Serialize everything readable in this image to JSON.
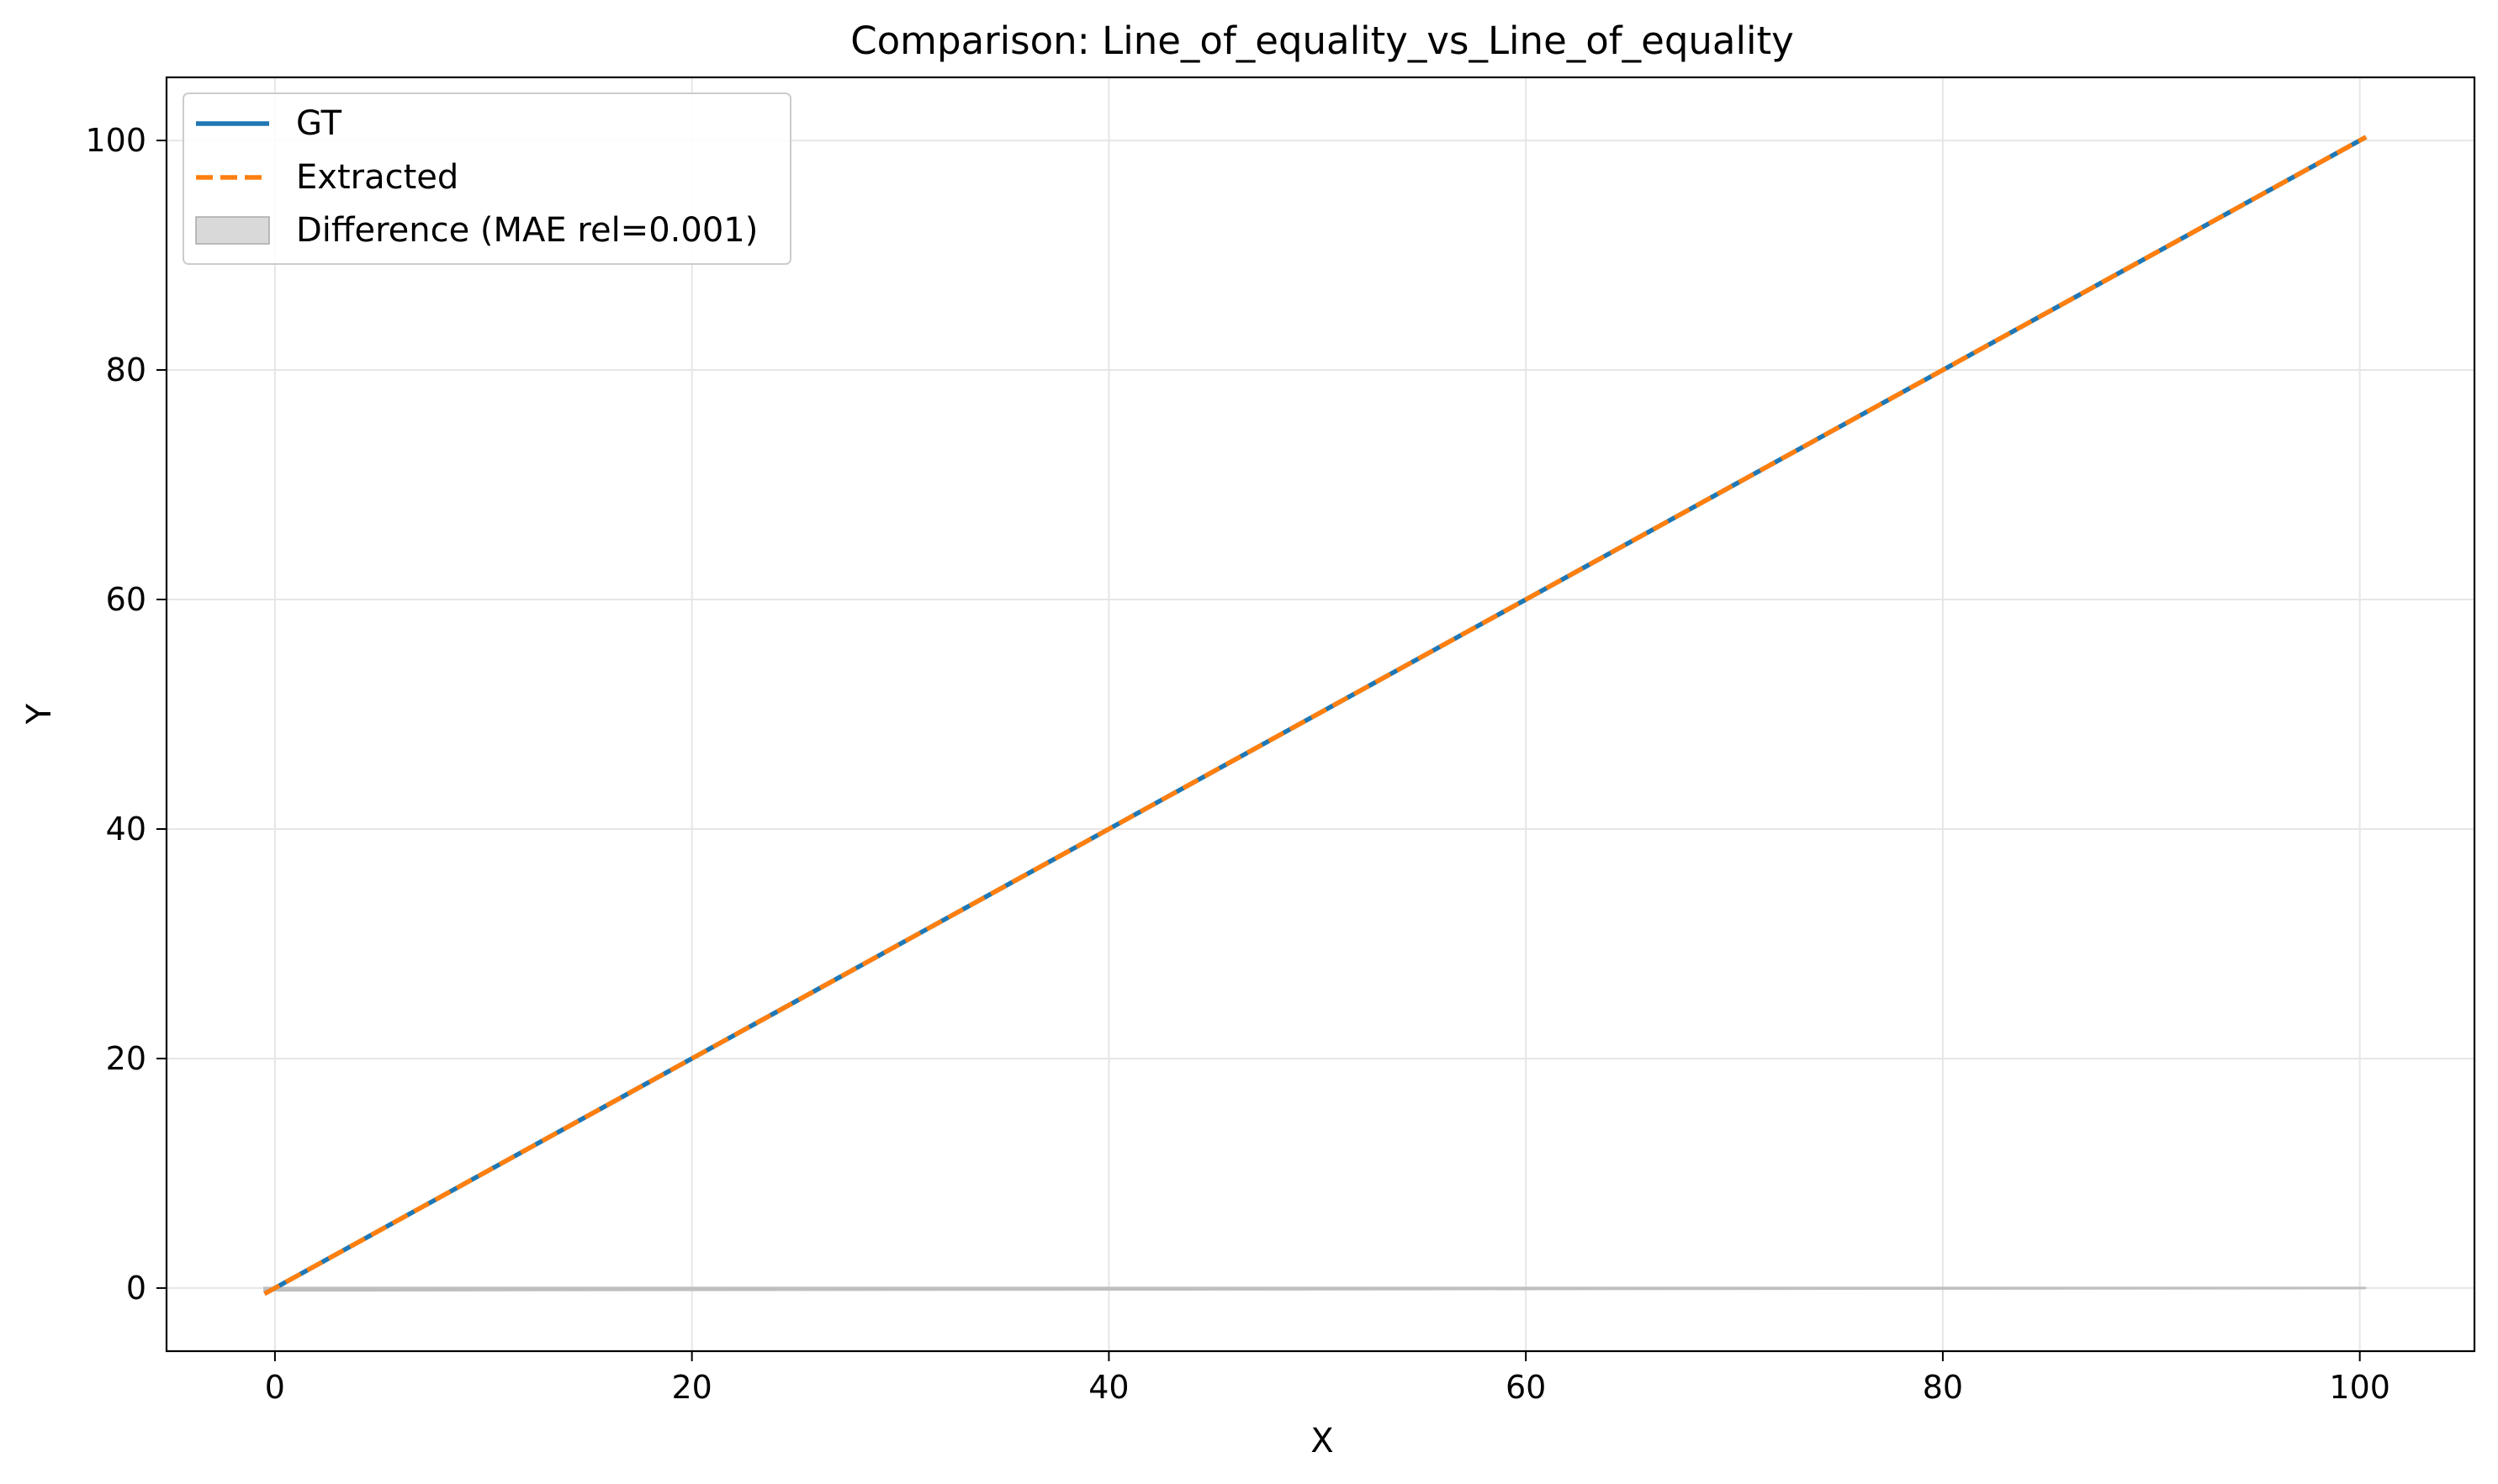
{
  "chart_data": {
    "type": "line",
    "title": "Comparison: Line_of_equality_vs_Line_of_equality",
    "xlabel": "X",
    "ylabel": "Y",
    "xlim": [
      -5.2,
      105.5
    ],
    "ylim": [
      -5.5,
      105.5
    ],
    "xticks": [
      0,
      20,
      40,
      60,
      80,
      100
    ],
    "yticks": [
      0,
      20,
      40,
      60,
      80,
      100
    ],
    "grid": true,
    "legend_position": "top-left",
    "series": [
      {
        "name": "GT",
        "style": "solid",
        "color": "#1f77b4",
        "x": [
          -0.5,
          100.3
        ],
        "y": [
          -0.5,
          100.3
        ]
      },
      {
        "name": "Extracted",
        "style": "dashed",
        "color": "#ff7f0e",
        "x": [
          -0.5,
          100.3
        ],
        "y": [
          -0.5,
          100.3
        ]
      },
      {
        "name": "Difference (MAE rel=0.001)",
        "style": "fill",
        "color": "#bfbfbf",
        "x": [
          -0.5,
          100.3
        ],
        "y_lower": [
          -0.2,
          0.0
        ],
        "y_upper": [
          0.0,
          0.0
        ]
      }
    ]
  }
}
